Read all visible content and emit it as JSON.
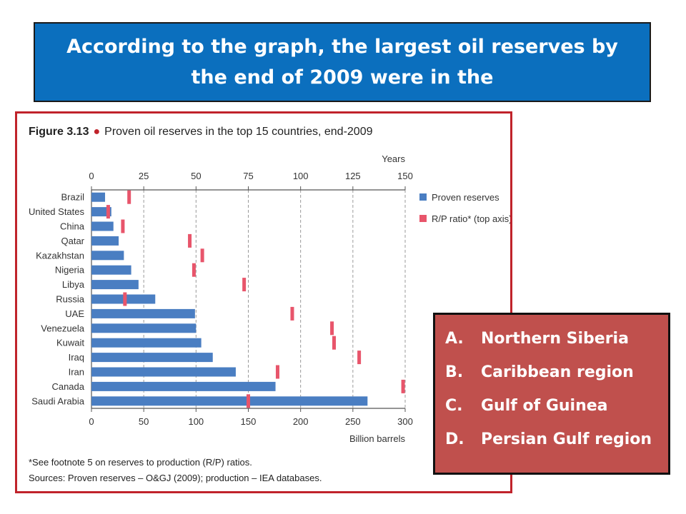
{
  "slide": {
    "question": "According to the graph, the largest oil reserves by the end of 2009 were in the"
  },
  "figure": {
    "label": "Figure 3.13",
    "title": "Proven oil reserves in the top 15 countries, end-2009",
    "footnote": "*See footnote 5 on reserves to production (R/P) ratios.",
    "sources": "Sources: Proven reserves – O&GJ (2009); production – IEA databases."
  },
  "answers": [
    {
      "letter": "A.",
      "text": "Northern Siberia"
    },
    {
      "letter": "B.",
      "text": "Caribbean region"
    },
    {
      "letter": "C.",
      "text": "Gulf of Guinea"
    },
    {
      "letter": "D.",
      "text": "Persian Gulf region"
    }
  ],
  "colors": {
    "banner": "#0B6FBE",
    "frame": "#C0232B",
    "bar": "#4A7EC2",
    "rp_marker": "#E8556B",
    "answer_box": "#C0504D"
  },
  "chart_data": {
    "type": "bar",
    "orientation": "horizontal",
    "categories": [
      "Brazil",
      "United States",
      "China",
      "Qatar",
      "Kazakhstan",
      "Nigeria",
      "Libya",
      "Russia",
      "UAE",
      "Venezuela",
      "Kuwait",
      "Iraq",
      "Iran",
      "Canada",
      "Saudi Arabia"
    ],
    "series": [
      {
        "name": "Proven reserves",
        "axis": "bottom",
        "values": [
          13,
          19,
          21,
          26,
          31,
          38,
          45,
          61,
          99,
          100,
          105,
          116,
          138,
          176,
          264
        ]
      },
      {
        "name": "R/P ratio* (top axis)",
        "axis": "top",
        "marker": "tick",
        "values": [
          18,
          8,
          15,
          47,
          53,
          49,
          73,
          16,
          96,
          115,
          116,
          128,
          89,
          149,
          75
        ]
      }
    ],
    "bottom_axis": {
      "label": "Billion barrels",
      "range": [
        0,
        300
      ],
      "ticks": [
        0,
        50,
        100,
        150,
        200,
        250,
        300
      ]
    },
    "top_axis": {
      "label": "Years",
      "range": [
        0,
        150
      ],
      "ticks": [
        0,
        25,
        50,
        75,
        100,
        125,
        150
      ]
    },
    "grid": "vertical dashed",
    "legend": "right"
  }
}
